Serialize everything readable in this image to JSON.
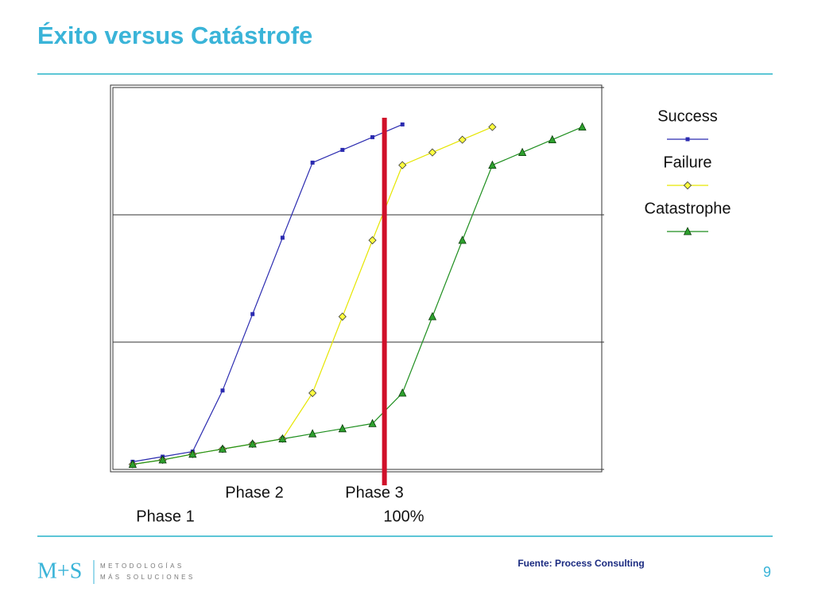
{
  "slide": {
    "title": "Éxito versus Catástrofe",
    "source": "Fuente: Process Consulting",
    "page": "9",
    "logo": {
      "mark": "M+S",
      "line1": "METODOLOGÍAS",
      "line2": "MÁS SOLUCIONES"
    }
  },
  "chart_data": {
    "type": "line",
    "x": [
      0,
      1,
      2,
      3,
      4,
      5,
      6,
      7,
      8,
      9,
      10,
      11,
      12,
      13,
      14,
      15
    ],
    "xlim": [
      -0.66,
      15.65
    ],
    "ylim": [
      0,
      3
    ],
    "yticks": [
      0,
      1,
      2,
      3
    ],
    "grid": true,
    "series": [
      {
        "name": "Success",
        "color": "#2b2bb0",
        "marker": "square",
        "values": [
          0.06,
          0.1,
          0.14,
          0.62,
          1.22,
          1.82,
          2.41,
          2.51,
          2.61,
          2.71,
          null,
          null,
          null,
          null,
          null,
          null
        ]
      },
      {
        "name": "Failure",
        "color": "#e6e600",
        "marker": "diamond",
        "values": [
          0.04,
          0.075,
          0.12,
          0.16,
          0.2,
          0.24,
          0.6,
          1.2,
          1.8,
          2.39,
          2.49,
          2.59,
          2.69,
          null,
          null,
          null
        ]
      },
      {
        "name": "Catastrophe",
        "color": "#1f8f1f",
        "marker": "triangle",
        "values": [
          0.04,
          0.075,
          0.12,
          0.16,
          0.2,
          0.24,
          0.28,
          0.32,
          0.36,
          0.6,
          1.2,
          1.8,
          2.39,
          2.49,
          2.59,
          2.69
        ]
      }
    ],
    "marker_line": {
      "x": 8.4,
      "color": "#d0102a"
    },
    "annotations": [
      "Phase 2",
      "Phase 3",
      "Phase 1",
      "100%"
    ],
    "legend": "right"
  }
}
